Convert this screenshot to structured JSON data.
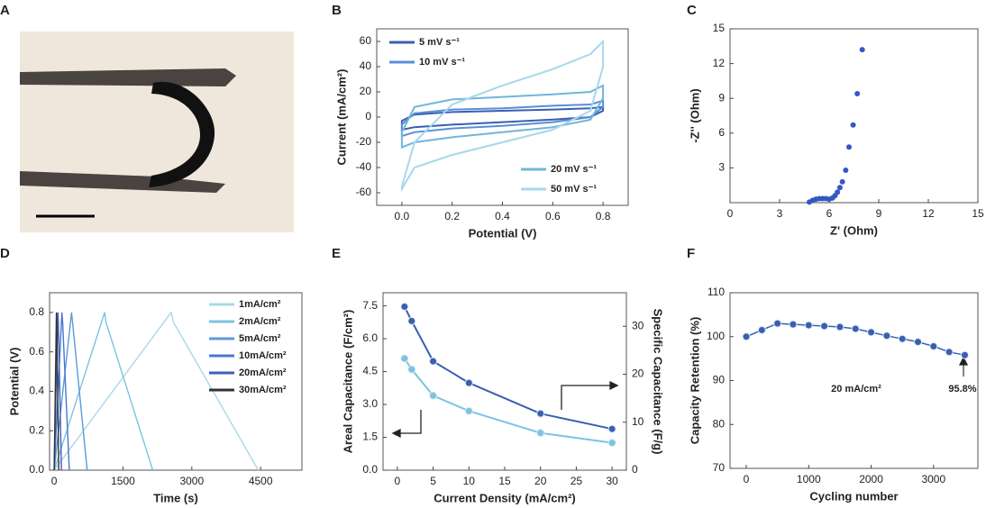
{
  "image_panel": {
    "panel_label": "A"
  },
  "chart_data": [
    {
      "type": "line",
      "panel_label": "B",
      "closed": true,
      "x_label": "Potential (V)",
      "y_label": "Current (mA/cm²)",
      "xlim": [
        -0.1,
        0.9
      ],
      "ylim": [
        -70,
        70
      ],
      "xticks": [
        {
          "value": 0,
          "label": "0.0"
        },
        0.2,
        0.4,
        0.6,
        0.8
      ],
      "yticks": [
        -60,
        -40,
        -20,
        0,
        20,
        40,
        60
      ],
      "series": [
        {
          "name": "5 mV s⁻¹",
          "color": "#3a5fb0",
          "x": [
            0,
            0.05,
            0.2,
            0.4,
            0.6,
            0.75,
            0.8,
            0.8,
            0.75,
            0.6,
            0.4,
            0.2,
            0.05,
            0
          ],
          "values": [
            -3,
            2,
            4,
            5,
            6,
            7,
            8,
            5,
            0,
            -2,
            -4,
            -6,
            -8,
            -10
          ]
        },
        {
          "name": "10 mV s⁻¹",
          "color": "#5b8ed6",
          "x": [
            0,
            0.05,
            0.2,
            0.4,
            0.6,
            0.75,
            0.8,
            0.8,
            0.75,
            0.6,
            0.4,
            0.2,
            0.05,
            0
          ],
          "values": [
            -6,
            3,
            6,
            7,
            9,
            10,
            13,
            8,
            0,
            -4,
            -7,
            -9,
            -12,
            -15
          ]
        },
        {
          "name": "20 mV s⁻¹",
          "color": "#6fb7d8",
          "x": [
            0,
            0.05,
            0.2,
            0.4,
            0.6,
            0.75,
            0.8,
            0.8,
            0.75,
            0.6,
            0.4,
            0.2,
            0.05,
            0
          ],
          "values": [
            -12,
            8,
            14,
            16,
            18,
            20,
            25,
            15,
            -2,
            -8,
            -12,
            -16,
            -20,
            -24
          ]
        },
        {
          "name": "50 mV s⁻¹",
          "color": "#a8d8ea",
          "x": [
            0,
            0.05,
            0.2,
            0.4,
            0.6,
            0.75,
            0.8,
            0.8,
            0.75,
            0.6,
            0.4,
            0.2,
            0.05,
            0
          ],
          "values": [
            -55,
            -20,
            10,
            25,
            38,
            50,
            60,
            40,
            5,
            -10,
            -20,
            -30,
            -40,
            -57
          ]
        }
      ]
    },
    {
      "type": "scatter",
      "panel_label": "C",
      "x_label": "Z' (Ohm)",
      "y_label": "-Z'' (Ohm)",
      "xlim": [
        0,
        15
      ],
      "ylim": [
        0,
        15
      ],
      "xticks": [
        0,
        3,
        6,
        9,
        12,
        15
      ],
      "yticks": [
        3,
        6,
        9,
        12,
        15
      ],
      "color": "#3358c4",
      "x": [
        4.8,
        5.0,
        5.2,
        5.4,
        5.6,
        5.8,
        6.0,
        6.2,
        6.35,
        6.5,
        6.65,
        6.8,
        7.0,
        7.2,
        7.45,
        7.7,
        8.0
      ],
      "values": [
        0.05,
        0.2,
        0.3,
        0.35,
        0.35,
        0.35,
        0.3,
        0.4,
        0.6,
        0.9,
        1.3,
        1.8,
        2.8,
        4.8,
        6.7,
        9.4,
        13.2
      ]
    },
    {
      "type": "line",
      "panel_label": "D",
      "x_label": "Time (s)",
      "y_label": "Potential (V)",
      "xlim": [
        -100,
        5400
      ],
      "ylim": [
        0,
        0.9
      ],
      "xticks": [
        0,
        1500,
        3000,
        4500
      ],
      "yticks": [
        {
          "value": 0,
          "label": "0.0"
        },
        0.2,
        0.4,
        0.6,
        0.8
      ],
      "series": [
        {
          "name": "1mA/cm²",
          "color": "#a8d8ea",
          "x": [
            0,
            2550,
            2600,
            4450
          ],
          "values": [
            0,
            0.8,
            0.75,
            0
          ]
        },
        {
          "name": "2mA/cm²",
          "color": "#7cc3e0",
          "x": [
            0,
            1100,
            1130,
            2150
          ],
          "values": [
            0,
            0.8,
            0.75,
            0
          ]
        },
        {
          "name": "5mA/cm²",
          "color": "#5a9ad8",
          "x": [
            0,
            380,
            400,
            720
          ],
          "values": [
            0,
            0.8,
            0.75,
            0
          ]
        },
        {
          "name": "10mA/cm²",
          "color": "#4a78cc",
          "x": [
            0,
            170,
            185,
            330
          ],
          "values": [
            0,
            0.8,
            0.75,
            0
          ]
        },
        {
          "name": "20mA/cm²",
          "color": "#3f5fb8",
          "x": [
            0,
            80,
            90,
            160
          ],
          "values": [
            0,
            0.8,
            0.75,
            0
          ]
        },
        {
          "name": "30mA/cm²",
          "color": "#333333",
          "x": [
            0,
            50,
            55,
            100
          ],
          "values": [
            0,
            0.8,
            0.75,
            0
          ]
        }
      ]
    },
    {
      "type": "line",
      "panel_label": "E",
      "markers": true,
      "x_label": "Current Density (mA/cm²)",
      "y_label": "Areal Capacitance (F/cm²)",
      "y2_label": "Specific Capacitance (F/g)",
      "xlim": [
        -2,
        32
      ],
      "ylim": [
        0,
        8.1
      ],
      "y2lim": [
        0,
        37
      ],
      "xticks": [
        0,
        5,
        10,
        15,
        20,
        25,
        30
      ],
      "yticks": [
        {
          "value": 0,
          "label": "0.0"
        },
        1.5,
        {
          "value": 3,
          "label": "3.0"
        },
        4.5,
        {
          "value": 6,
          "label": "6.0"
        },
        7.5
      ],
      "y2ticks": [
        0,
        10,
        20,
        30
      ],
      "x": [
        1,
        2,
        5,
        10,
        20,
        30
      ],
      "series": [
        {
          "color": "#7cc3e0",
          "values": [
            5.1,
            4.6,
            3.4,
            2.7,
            1.7,
            1.25
          ]
        },
        {
          "color": "#3a5fb0",
          "axis": "y2",
          "values": [
            34.1,
            31.1,
            22.7,
            18.2,
            11.8,
            8.6
          ]
        }
      ]
    },
    {
      "type": "line",
      "panel_label": "F",
      "markers": true,
      "x_label": "Cycling number",
      "y_label": "Capacity Retention (%)",
      "xlim": [
        -260,
        3710
      ],
      "ylim": [
        70,
        110
      ],
      "xticks": [
        0,
        1000,
        2000,
        3000
      ],
      "yticks": [
        70,
        80,
        90,
        100,
        110
      ],
      "annotations": [
        "20 mA/cm²",
        "95.8%"
      ],
      "x": [
        0,
        250,
        500,
        750,
        1000,
        1250,
        1500,
        1750,
        2000,
        2250,
        2500,
        2750,
        3000,
        3250,
        3500
      ],
      "series": [
        {
          "color": "#3a5fb0",
          "values": [
            100,
            101.5,
            103,
            102.8,
            102.6,
            102.4,
            102.2,
            101.8,
            101,
            100.2,
            99.5,
            98.8,
            97.8,
            96.5,
            95.8
          ]
        }
      ]
    }
  ]
}
